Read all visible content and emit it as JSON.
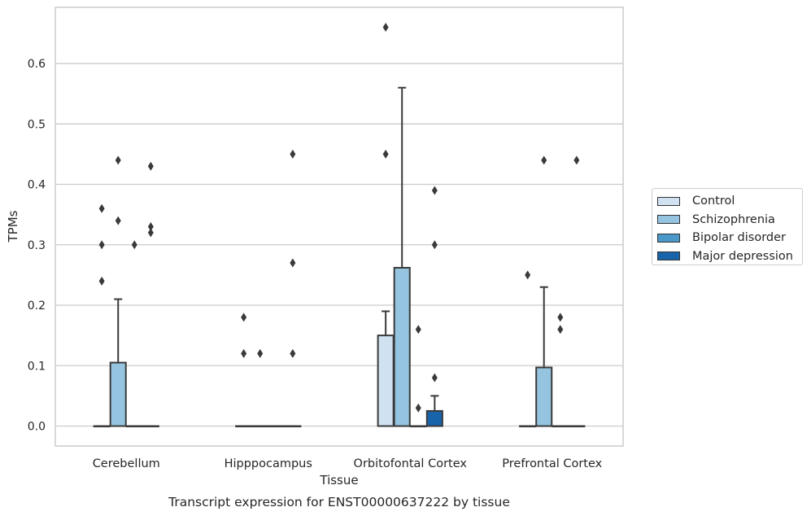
{
  "chart_data": {
    "type": "box",
    "title": "",
    "caption": "Transcript expression for ENST00000637222 by tissue",
    "xlabel": "Tissue",
    "ylabel": "TPMs",
    "ylim": [
      -0.033,
      0.693
    ],
    "yticks": [
      0.0,
      0.1,
      0.2,
      0.3,
      0.4,
      0.5,
      0.6
    ],
    "ytick_labels": [
      "0.0",
      "0.1",
      "0.2",
      "0.3",
      "0.4",
      "0.5",
      "0.6"
    ],
    "grid": true,
    "legend_position": "right",
    "categories": [
      "Cerebellum",
      "Hipppocampus",
      "Orbitofontal Cortex",
      "Prefrontal Cortex"
    ],
    "series": [
      {
        "name": "Control",
        "color": "#d0e1f2",
        "boxes": [
          {
            "q1": 0,
            "median": 0,
            "q3": 0,
            "whisker_low": 0,
            "whisker_high": 0,
            "outliers": [
              0.36,
              0.3,
              0.24
            ]
          },
          {
            "q1": 0,
            "median": 0,
            "q3": 0,
            "whisker_low": 0,
            "whisker_high": 0,
            "outliers": [
              0.18,
              0.12
            ]
          },
          {
            "q1": 0,
            "median": 0,
            "q3": 0.15,
            "whisker_low": 0,
            "whisker_high": 0.19,
            "outliers": [
              0.66,
              0.45
            ]
          },
          {
            "q1": 0,
            "median": 0,
            "q3": 0,
            "whisker_low": 0,
            "whisker_high": 0,
            "outliers": [
              0.25
            ]
          }
        ]
      },
      {
        "name": "Schizophrenia",
        "color": "#94c4df",
        "boxes": [
          {
            "q1": 0,
            "median": 0,
            "q3": 0.105,
            "whisker_low": 0,
            "whisker_high": 0.21,
            "outliers": [
              0.44,
              0.34
            ]
          },
          {
            "q1": 0,
            "median": 0,
            "q3": 0,
            "whisker_low": 0,
            "whisker_high": 0,
            "outliers": [
              0.12
            ]
          },
          {
            "q1": 0,
            "median": 0,
            "q3": 0.262,
            "whisker_low": 0,
            "whisker_high": 0.56,
            "outliers": []
          },
          {
            "q1": 0,
            "median": 0,
            "q3": 0.097,
            "whisker_low": 0,
            "whisker_high": 0.23,
            "outliers": [
              0.44
            ]
          }
        ]
      },
      {
        "name": "Bipolar disorder",
        "color": "#4a98c9",
        "boxes": [
          {
            "q1": 0,
            "median": 0,
            "q3": 0,
            "whisker_low": 0,
            "whisker_high": 0,
            "outliers": [
              0.3
            ]
          },
          {
            "q1": 0,
            "median": 0,
            "q3": 0,
            "whisker_low": 0,
            "whisker_high": 0,
            "outliers": []
          },
          {
            "q1": 0,
            "median": 0,
            "q3": 0,
            "whisker_low": 0,
            "whisker_high": 0,
            "outliers": [
              0.16,
              0.03
            ]
          },
          {
            "q1": 0,
            "median": 0,
            "q3": 0,
            "whisker_low": 0,
            "whisker_high": 0,
            "outliers": [
              0.18,
              0.16
            ]
          }
        ]
      },
      {
        "name": "Major depression",
        "color": "#1764ab",
        "boxes": [
          {
            "q1": 0,
            "median": 0,
            "q3": 0,
            "whisker_low": 0,
            "whisker_high": 0,
            "outliers": [
              0.43,
              0.33,
              0.32
            ]
          },
          {
            "q1": 0,
            "median": 0,
            "q3": 0,
            "whisker_low": 0,
            "whisker_high": 0,
            "outliers": [
              0.45,
              0.27,
              0.12
            ]
          },
          {
            "q1": 0,
            "median": 0,
            "q3": 0.025,
            "whisker_low": 0,
            "whisker_high": 0.05,
            "outliers": [
              0.39,
              0.3,
              0.08
            ]
          },
          {
            "q1": 0,
            "median": 0,
            "q3": 0,
            "whisker_low": 0,
            "whisker_high": 0,
            "outliers": [
              0.44
            ]
          }
        ]
      }
    ]
  }
}
